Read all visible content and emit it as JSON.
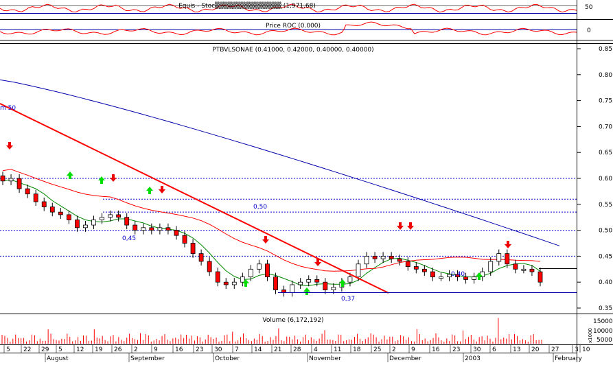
{
  "panels": {
    "stochastic": {
      "title": "Equis - Stochastic Oscillator ▲ ■ ▼ Close (1,971.68)",
      "title_display": "Equis - Stoc▒▒▒▒▒▒▒▒▒▒▒▒▒▒ (1,971.68)",
      "right_tick": "50"
    },
    "roc": {
      "title": "Price ROC (0.000)",
      "right_tick": "0"
    },
    "price": {
      "title": "PTBVLSONAE (0.41000, 0.42000, 0.40000, 0.40000)",
      "y_ticks": [
        "0.85",
        "0.80",
        "0.75",
        "0.70",
        "0.65",
        "0.60",
        "0.55",
        "0.50",
        "0.45",
        "0.40",
        "0.35"
      ],
      "annotations": {
        "left_ma": "m 50",
        "level_050": "0,50",
        "level_045": "0,45",
        "level_040": "0,40",
        "level_037": "0,37"
      }
    },
    "volume": {
      "title": "Volume (6,172,192)",
      "y_ticks": [
        "15000",
        "10000",
        "5000"
      ],
      "unit_label": "x1000"
    }
  },
  "x_axis": {
    "day_ticks": [
      "5",
      "22",
      "29",
      "5",
      "12",
      "19",
      "26",
      "2",
      "9",
      "16",
      "23",
      "30",
      "7",
      "14",
      "21",
      "28",
      "4",
      "11",
      "18",
      "25",
      "2",
      "9",
      "16",
      "23",
      "30",
      "6",
      "13",
      "20",
      "27",
      "3",
      "10"
    ],
    "month_labels": [
      "August",
      "September",
      "October",
      "November",
      "December",
      "2003",
      "February"
    ]
  },
  "colors": {
    "background": "#ffffff",
    "candle_up": "#ffffff",
    "candle_down": "#ff0000",
    "blue_ma": "#0000aa",
    "red_ma": "#ff0000",
    "green_ma": "#008800",
    "trend_line": "#ff0000",
    "support_line": "#0000aa",
    "dashed_level": "#0000cc",
    "buy_arrow": "#00dd00",
    "sell_arrow": "#ee0000"
  },
  "chart_data": {
    "type": "candlestick",
    "title": "PTBVLSONAE (0.41000, 0.42000, 0.40000, 0.40000)",
    "ylim": [
      0.35,
      0.85
    ],
    "last": {
      "open": 0.41,
      "high": 0.42,
      "low": 0.4,
      "close": 0.4
    },
    "horizontal_levels": [
      0.6,
      0.56,
      0.535,
      0.5,
      0.45,
      0.4,
      0.37
    ],
    "close_series_approx": [
      0.595,
      0.6,
      0.58,
      0.57,
      0.555,
      0.545,
      0.535,
      0.53,
      0.52,
      0.505,
      0.51,
      0.52,
      0.525,
      0.53,
      0.525,
      0.51,
      0.5,
      0.505,
      0.5,
      0.505,
      0.5,
      0.49,
      0.475,
      0.455,
      0.44,
      0.42,
      0.4,
      0.395,
      0.4,
      0.41,
      0.425,
      0.435,
      0.41,
      0.385,
      0.38,
      0.395,
      0.4,
      0.405,
      0.4,
      0.385,
      0.39,
      0.4,
      0.41,
      0.435,
      0.45,
      0.445,
      0.45,
      0.445,
      0.44,
      0.43,
      0.425,
      0.42,
      0.41,
      0.41,
      0.415,
      0.41,
      0.405,
      0.41,
      0.42,
      0.44,
      0.455,
      0.435,
      0.425,
      0.425,
      0.42,
      0.4
    ],
    "volume_title": "Volume (6,172,192)",
    "volume_ylim": [
      0,
      20000
    ]
  }
}
